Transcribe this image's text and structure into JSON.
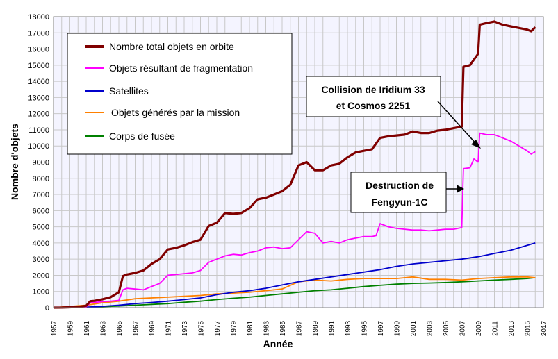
{
  "chart_data": {
    "type": "line",
    "xlabel": "Année",
    "ylabel": "Nombre d'objets",
    "xlim": [
      1957,
      2017
    ],
    "ylim": [
      0,
      18000
    ],
    "grid": true,
    "legend_placement": "top-left",
    "x_ticks": [
      "1957",
      "1959",
      "1961",
      "1963",
      "1965",
      "1967",
      "1969",
      "1971",
      "1973",
      "1975",
      "1977",
      "1979",
      "1981",
      "1983",
      "1985",
      "1987",
      "1989",
      "1991",
      "1993",
      "1995",
      "1997",
      "1999",
      "2001",
      "2003",
      "2005",
      "2007",
      "2009",
      "2011",
      "2013",
      "2015",
      "2017"
    ],
    "y_ticks": [
      "0",
      "1000",
      "2000",
      "3000",
      "4000",
      "5000",
      "6000",
      "7000",
      "8000",
      "9000",
      "10000",
      "11000",
      "12000",
      "13000",
      "14000",
      "15000",
      "16000",
      "17000",
      "18000"
    ],
    "series": [
      {
        "name": "Nombre total objets en orbite",
        "color": "#800000",
        "x": [
          1957,
          1958,
          1959,
          1960,
          1961,
          1961.5,
          1962,
          1963,
          1964,
          1965,
          1965.5,
          1966,
          1967,
          1968,
          1969,
          1970,
          1971,
          1972,
          1973,
          1974,
          1975,
          1976,
          1977,
          1978,
          1979,
          1980,
          1981,
          1982,
          1983,
          1984,
          1985,
          1986,
          1987,
          1988,
          1989,
          1990,
          1991,
          1992,
          1993,
          1994,
          1995,
          1996,
          1997,
          1998,
          1999,
          2000,
          2001,
          2002,
          2003,
          2004,
          2005,
          2006,
          2007,
          2007.2,
          2008,
          2009,
          2009.2,
          2010,
          2011,
          2012,
          2013,
          2014,
          2015,
          2015.5,
          2016
        ],
        "values": [
          0,
          5,
          20,
          50,
          115,
          400,
          420,
          520,
          650,
          950,
          1950,
          2050,
          2150,
          2300,
          2700,
          3000,
          3600,
          3700,
          3850,
          4050,
          4200,
          5050,
          5250,
          5850,
          5800,
          5850,
          6150,
          6700,
          6800,
          7000,
          7200,
          7600,
          8800,
          9000,
          8500,
          8500,
          8800,
          8900,
          9300,
          9600,
          9700,
          9800,
          10500,
          10600,
          10650,
          10700,
          10900,
          10800,
          10800,
          10950,
          11000,
          11100,
          11200,
          14900,
          15000,
          15700,
          17500,
          17600,
          17700,
          17500,
          17400,
          17300,
          17200,
          17100,
          17350
        ]
      },
      {
        "name": "Objets résultant de fragmentation",
        "color": "#ff00ff",
        "x": [
          1957,
          1960,
          1961,
          1961.5,
          1962,
          1963,
          1964,
          1965,
          1965.5,
          1966,
          1967,
          1968,
          1969,
          1970,
          1971,
          1972,
          1973,
          1974,
          1975,
          1976,
          1977,
          1978,
          1979,
          1980,
          1981,
          1982,
          1983,
          1984,
          1985,
          1986,
          1987,
          1988,
          1989,
          1990,
          1991,
          1992,
          1993,
          1994,
          1995,
          1996,
          1996.5,
          1997,
          1998,
          1999,
          2000,
          2001,
          2002,
          2003,
          2004,
          2005,
          2006,
          2007,
          2007.2,
          2008,
          2008.5,
          2009,
          2009.2,
          2010,
          2011,
          2012,
          2013,
          2014,
          2015,
          2015.5,
          2016
        ],
        "values": [
          0,
          0,
          50,
          300,
          320,
          380,
          400,
          450,
          1100,
          1200,
          1150,
          1100,
          1300,
          1500,
          2000,
          2050,
          2100,
          2150,
          2300,
          2800,
          3000,
          3200,
          3300,
          3250,
          3400,
          3500,
          3700,
          3750,
          3650,
          3700,
          4200,
          4700,
          4600,
          4000,
          4100,
          4000,
          4200,
          4300,
          4400,
          4400,
          4450,
          5200,
          5000,
          4900,
          4850,
          4800,
          4800,
          4750,
          4800,
          4850,
          4850,
          4950,
          8600,
          8650,
          9200,
          9000,
          10800,
          10700,
          10700,
          10500,
          10300,
          10000,
          9700,
          9500,
          9650
        ]
      },
      {
        "name": "Satellites",
        "color": "#0000cc",
        "x": [
          1957,
          1961,
          1963,
          1965,
          1967,
          1969,
          1971,
          1973,
          1975,
          1977,
          1979,
          1981,
          1983,
          1985,
          1987,
          1989,
          1991,
          1993,
          1995,
          1997,
          1999,
          2001,
          2003,
          2005,
          2007,
          2009,
          2011,
          2013,
          2015,
          2016
        ],
        "values": [
          0,
          30,
          80,
          150,
          250,
          320,
          400,
          500,
          600,
          800,
          950,
          1050,
          1200,
          1400,
          1600,
          1750,
          1900,
          2050,
          2200,
          2350,
          2550,
          2700,
          2800,
          2900,
          3000,
          3150,
          3350,
          3550,
          3850,
          4000
        ]
      },
      {
        "name": "Objets générés par la mission",
        "color": "#ff8000",
        "x": [
          1957,
          1961,
          1963,
          1965,
          1967,
          1969,
          1971,
          1973,
          1975,
          1977,
          1979,
          1981,
          1983,
          1985,
          1987,
          1989,
          1991,
          1993,
          1995,
          1997,
          1999,
          2001,
          2003,
          2005,
          2007,
          2009,
          2011,
          2013,
          2015,
          2016
        ],
        "values": [
          0,
          150,
          300,
          400,
          550,
          600,
          650,
          700,
          750,
          850,
          900,
          950,
          1050,
          1150,
          1600,
          1700,
          1650,
          1750,
          1800,
          1800,
          1800,
          1900,
          1750,
          1750,
          1700,
          1800,
          1850,
          1900,
          1900,
          1850
        ]
      },
      {
        "name": "Corps de fusée",
        "color": "#008000",
        "x": [
          1957,
          1961,
          1963,
          1965,
          1967,
          1969,
          1971,
          1973,
          1975,
          1977,
          1979,
          1981,
          1983,
          1985,
          1987,
          1989,
          1991,
          1993,
          1995,
          1997,
          1999,
          2001,
          2003,
          2005,
          2007,
          2009,
          2011,
          2013,
          2015,
          2016
        ],
        "values": [
          0,
          20,
          60,
          100,
          150,
          200,
          250,
          330,
          400,
          500,
          580,
          650,
          750,
          850,
          950,
          1050,
          1100,
          1200,
          1300,
          1380,
          1450,
          1500,
          1520,
          1550,
          1600,
          1650,
          1700,
          1750,
          1800,
          1850
        ]
      }
    ],
    "annotations": [
      {
        "lines": [
          "Collision de Iridium 33",
          "et Cosmos 2251"
        ]
      },
      {
        "lines": [
          "Destruction de",
          "Fengyun-1C"
        ]
      }
    ]
  }
}
